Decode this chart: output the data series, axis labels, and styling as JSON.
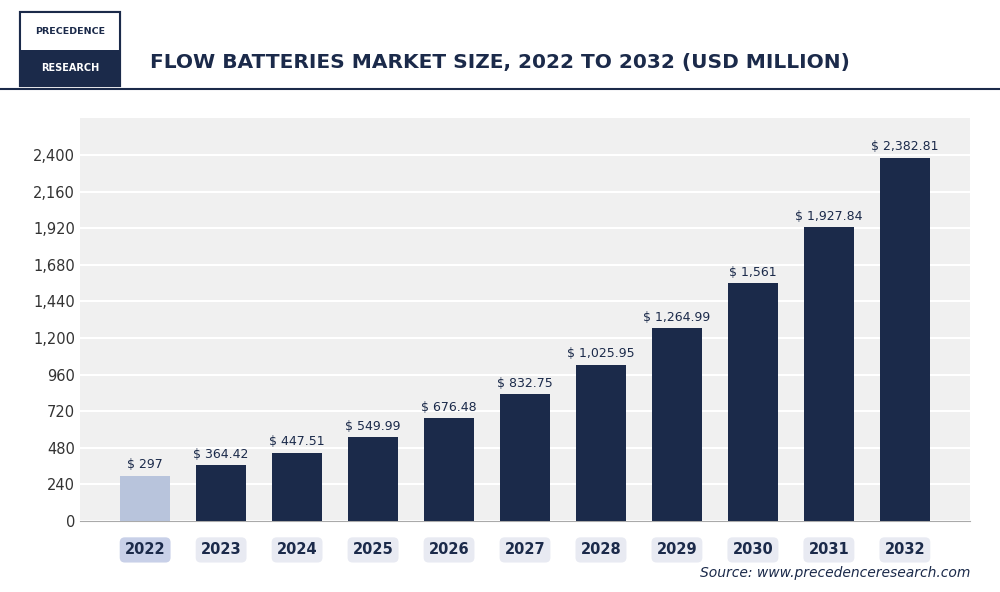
{
  "title": "FLOW BATTERIES MARKET SIZE, 2022 TO 2032 (USD MILLION)",
  "categories": [
    "2022",
    "2023",
    "2024",
    "2025",
    "2026",
    "2027",
    "2028",
    "2029",
    "2030",
    "2031",
    "2032"
  ],
  "values": [
    297,
    364.42,
    447.51,
    549.99,
    676.48,
    832.75,
    1025.95,
    1264.99,
    1561,
    1927.84,
    2382.81
  ],
  "labels": [
    "$ 297",
    "$ 364.42",
    "$ 447.51",
    "$ 549.99",
    "$ 676.48",
    "$ 832.75",
    "$ 1,025.95",
    "$ 1,264.99",
    "$ 1,561",
    "$ 1,927.84",
    "$ 2,382.81"
  ],
  "bar_colors": [
    "#b8c4dc",
    "#1b2a4a",
    "#1b2a4a",
    "#1b2a4a",
    "#1b2a4a",
    "#1b2a4a",
    "#1b2a4a",
    "#1b2a4a",
    "#1b2a4a",
    "#1b2a4a",
    "#1b2a4a"
  ],
  "label_color": "#1b2a4a",
  "x_tick_bg_color_first": "#c8d0e8",
  "x_tick_bg_color_rest": "#e8eaf2",
  "background_color": "#ffffff",
  "plot_bg_color": "#f0f0f0",
  "grid_color": "#ffffff",
  "ylim": [
    0,
    2640
  ],
  "yticks": [
    0,
    240,
    480,
    720,
    960,
    1200,
    1440,
    1680,
    1920,
    2160,
    2400
  ],
  "source_text": "Source: www.precedenceresearch.com",
  "logo_line1": "PRECEDENCE",
  "logo_line2": "RESEARCH",
  "logo_border_color": "#1b2a4a",
  "logo_bg_top": "#ffffff",
  "logo_bg_bottom": "#1b2a4a",
  "logo_text_top_color": "#1b2a4a",
  "logo_text_bottom_color": "#ffffff",
  "title_fontsize": 14.5,
  "axis_fontsize": 10.5,
  "label_fontsize": 9,
  "source_fontsize": 10,
  "divider_color": "#1b2a4a"
}
